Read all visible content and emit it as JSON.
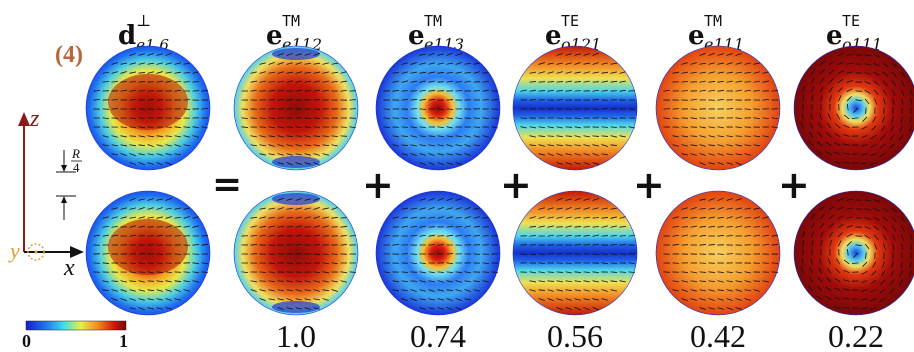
{
  "panel_label": "(4)",
  "panel_label_color": "#b8663a",
  "source_mode": {
    "symbol": "d",
    "sup": "⊥",
    "sub": "e1,6"
  },
  "operators": {
    "equals": "=",
    "plus": "+"
  },
  "modes": [
    {
      "symbol": "e",
      "sup": "TM",
      "sub": "e112",
      "coefficient": "1.0",
      "pattern": "e112"
    },
    {
      "symbol": "e",
      "sup": "TM",
      "sub": "e113",
      "coefficient": "0.74",
      "pattern": "e113"
    },
    {
      "symbol": "e",
      "sup": "TE",
      "sub": "o121",
      "coefficient": "0.56",
      "pattern": "o121"
    },
    {
      "symbol": "e",
      "sup": "TM",
      "sub": "e111",
      "coefficient": "0.42",
      "pattern": "e111"
    },
    {
      "symbol": "e",
      "sup": "TE",
      "sub": "o111",
      "coefficient": "0.22",
      "pattern": "o111"
    }
  ],
  "axes": {
    "z": "z",
    "x": "x",
    "y": "y",
    "scale_num": "R",
    "scale_den": "4",
    "axis_color": "#8b1a1a",
    "y_color": "#e0a030"
  },
  "colorbar": {
    "min": "0",
    "max": "1"
  },
  "colors": {
    "low": "#1a2fd8",
    "high": "#8a0a0a",
    "arrow": "#111111"
  }
}
